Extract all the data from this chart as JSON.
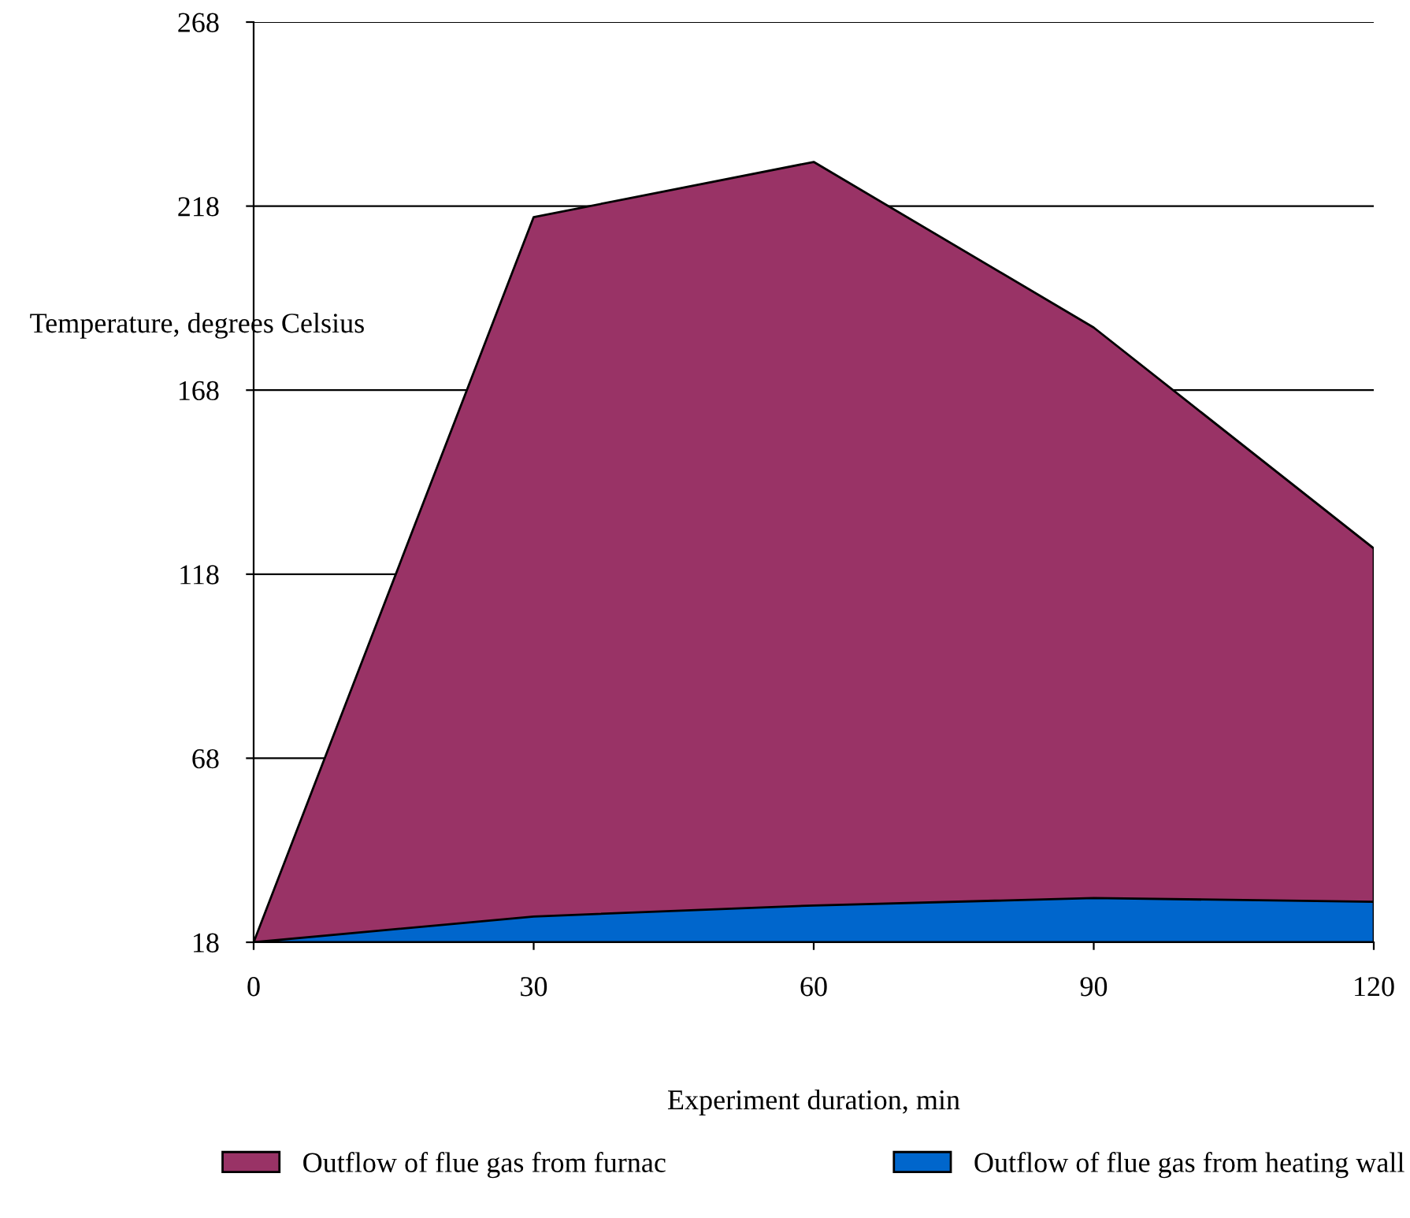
{
  "chart_data": {
    "type": "area",
    "xlabel": "Experiment duration, min",
    "ylabel": "Temperature, degrees Celsius",
    "x": [
      0,
      30,
      60,
      90,
      120
    ],
    "series": [
      {
        "name": "Outflow of flue gas from furnac",
        "color": "#993366",
        "values": [
          18,
          215,
          230,
          185,
          125
        ]
      },
      {
        "name": "Outflow of flue gas from heating wall",
        "color": "#0066cc",
        "values": [
          18,
          25,
          28,
          30,
          29
        ]
      }
    ],
    "xlim": [
      0,
      120
    ],
    "xticks": [
      0,
      30,
      60,
      90,
      120
    ],
    "ylim": [
      18,
      268
    ],
    "yticks": [
      18,
      68,
      118,
      168,
      218,
      268
    ],
    "grid": "y",
    "legend": "bottom"
  }
}
